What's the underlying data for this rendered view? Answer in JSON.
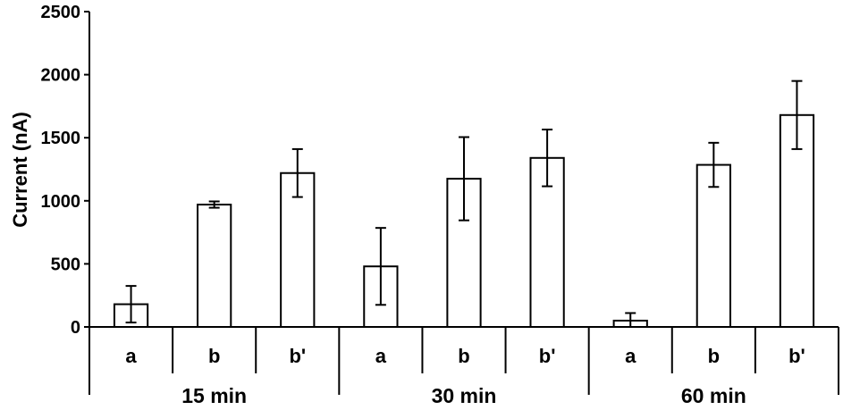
{
  "chart_data": {
    "type": "bar",
    "ylabel": "Current (nA)",
    "xlabel": "",
    "ylim": [
      0,
      2500
    ],
    "yticks": [
      0,
      500,
      1000,
      1500,
      2000,
      2500
    ],
    "ytick_labels": [
      "0",
      "500",
      "1000",
      "1500",
      "2000",
      "2500"
    ],
    "grid": false,
    "groups": [
      {
        "label": "15 min",
        "bars": [
          {
            "category": "a",
            "value": 180,
            "error": 145
          },
          {
            "category": "b",
            "value": 970,
            "error": 25
          },
          {
            "category": "b'",
            "value": 1220,
            "error": 190
          }
        ]
      },
      {
        "label": "30 min",
        "bars": [
          {
            "category": "a",
            "value": 480,
            "error": 305
          },
          {
            "category": "b",
            "value": 1175,
            "error": 330
          },
          {
            "category": "b'",
            "value": 1340,
            "error": 225
          }
        ]
      },
      {
        "label": "60 min",
        "bars": [
          {
            "category": "a",
            "value": 50,
            "error": 60
          },
          {
            "category": "b",
            "value": 1285,
            "error": 175
          },
          {
            "category": "b'",
            "value": 1680,
            "error": 270
          }
        ]
      }
    ]
  }
}
